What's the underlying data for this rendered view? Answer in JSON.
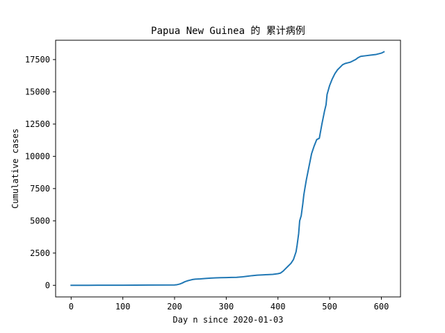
{
  "chart_data": {
    "type": "line",
    "title": "Papua New Guinea 的 累计病例",
    "xlabel": "Day n since 2020-01-03",
    "ylabel": "Cumulative cases",
    "xlim": [
      -30,
      637
    ],
    "ylim": [
      -900,
      19000
    ],
    "xticks": [
      0,
      100,
      200,
      300,
      400,
      500,
      600
    ],
    "xtick_labels": [
      "0",
      "100",
      "200",
      "300",
      "400",
      "500",
      "600"
    ],
    "yticks": [
      0,
      2500,
      5000,
      7500,
      10000,
      12500,
      15000,
      17500
    ],
    "ytick_labels": [
      "0",
      "2500",
      "5000",
      "7500",
      "10000",
      "12500",
      "15000",
      "17500"
    ],
    "grid": false,
    "series": [
      {
        "color": "#1f77b4",
        "x": [
          0,
          50,
          100,
          150,
          200,
          205,
          210,
          215,
          220,
          225,
          230,
          235,
          240,
          250,
          260,
          270,
          280,
          290,
          300,
          310,
          320,
          330,
          340,
          350,
          360,
          370,
          380,
          390,
          400,
          405,
          410,
          415,
          420,
          425,
          430,
          435,
          437,
          440,
          442,
          445,
          448,
          450,
          452,
          455,
          460,
          465,
          470,
          475,
          480,
          485,
          490,
          493,
          495,
          500,
          505,
          510,
          515,
          520,
          525,
          530,
          535,
          540,
          545,
          550,
          555,
          560,
          570,
          580,
          590,
          600,
          605
        ],
        "values": [
          0,
          5,
          10,
          20,
          30,
          50,
          100,
          180,
          280,
          350,
          400,
          450,
          480,
          500,
          530,
          560,
          580,
          590,
          600,
          610,
          620,
          650,
          700,
          750,
          790,
          810,
          830,
          850,
          900,
          950,
          1100,
          1300,
          1500,
          1700,
          2000,
          2600,
          3100,
          4000,
          5000,
          5400,
          6300,
          7000,
          7500,
          8200,
          9200,
          10200,
          10800,
          11300,
          11400,
          12500,
          13500,
          14000,
          14800,
          15500,
          16000,
          16400,
          16700,
          16900,
          17100,
          17200,
          17250,
          17300,
          17400,
          17500,
          17650,
          17750,
          17800,
          17850,
          17900,
          18000,
          18100
        ]
      }
    ]
  }
}
